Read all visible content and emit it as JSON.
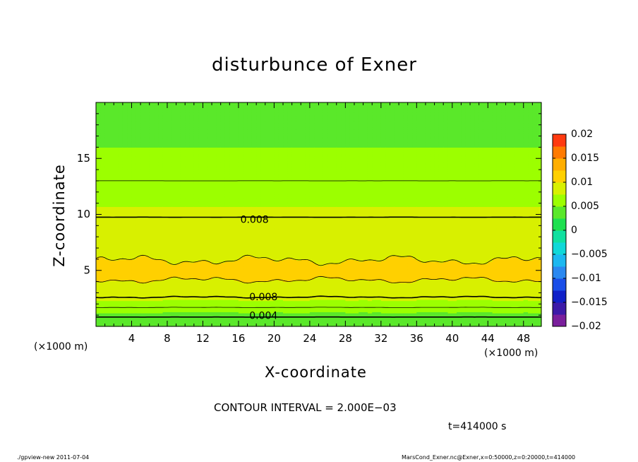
{
  "chart_data": {
    "type": "contour",
    "title": "disturbunce of Exner",
    "xlabel": "X-coordinate",
    "ylabel": "Z-coordinate",
    "x_unit_note": "(×1000 m)",
    "y_unit_note": "(×1000 m)",
    "xlim": [
      0,
      50
    ],
    "ylim": [
      0,
      20
    ],
    "x_ticks": [
      4,
      8,
      12,
      16,
      20,
      24,
      28,
      32,
      36,
      40,
      44,
      48
    ],
    "y_ticks": [
      5,
      10,
      15
    ],
    "colorbar": {
      "min": -0.02,
      "max": 0.02,
      "step": 0.0025,
      "tick_values": [
        0.02,
        0.015,
        0.01,
        0.005,
        0,
        -0.005,
        -0.01,
        -0.015,
        -0.02
      ],
      "tick_labels": [
        "0.02",
        "0.015",
        "0.01",
        "0.005",
        "0",
        "−0.005",
        "−0.01",
        "−0.015",
        "−0.02"
      ]
    },
    "profile_z_km": [
      0,
      0.5,
      1,
      1.5,
      2,
      2.5,
      3,
      4,
      4.5,
      5,
      5.5,
      6,
      7,
      8,
      9,
      10,
      11,
      12,
      13,
      14,
      16,
      18,
      20
    ],
    "profile_value": [
      0.0025,
      0.003,
      0.0045,
      0.0055,
      0.0068,
      0.0078,
      0.0087,
      0.0098,
      0.0105,
      0.0108,
      0.0104,
      0.0099,
      0.0093,
      0.0088,
      0.0083,
      0.0079,
      0.0073,
      0.0066,
      0.006,
      0.0055,
      0.005,
      0.0047,
      0.0045
    ],
    "contour_labels": [
      {
        "text": "0.008",
        "x": 17.8,
        "z": 9.5
      },
      {
        "text": "0.008",
        "x": 18.8,
        "z": 2.6
      },
      {
        "text": "0.004",
        "x": 18.8,
        "z": 0.9
      }
    ],
    "contour_interval_text": "CONTOUR INTERVAL = 2.000E−03"
  },
  "footer": {
    "time_text": "t=414000 s",
    "program_text": "./gpview-new   2011-07-04",
    "source_text": "MarsCond_Exner.nc@Exner,x=0:50000,z=0:20000,t=414000"
  }
}
